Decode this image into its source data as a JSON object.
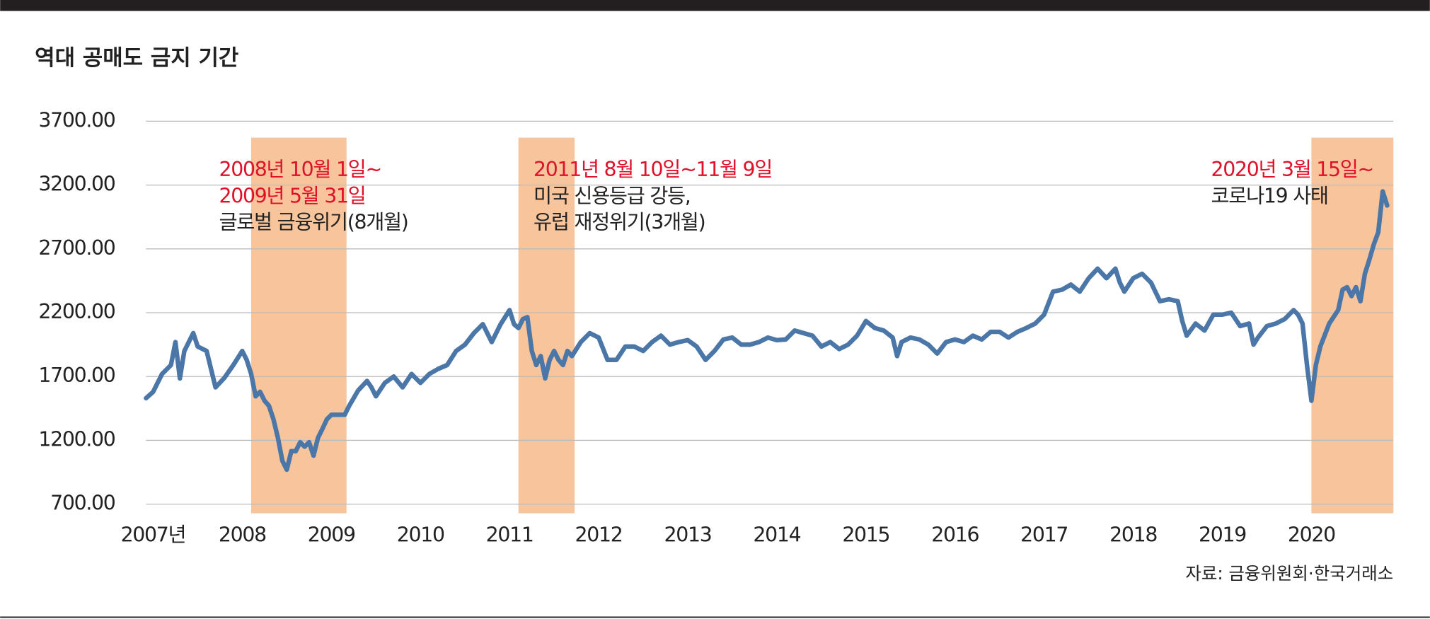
{
  "chart_data": {
    "type": "line",
    "title": "역대 공매도 금지 기간",
    "source": "자료: 금융위원회·한국거래소",
    "xlim": [
      2006.92,
      2020.92
    ],
    "ylim": [
      700,
      3700
    ],
    "grid": true,
    "yticks": [
      {
        "value": 700,
        "label": "700.00"
      },
      {
        "value": 1200,
        "label": "1200.00"
      },
      {
        "value": 1700,
        "label": "1700.00"
      },
      {
        "value": 2200,
        "label": "2200.00"
      },
      {
        "value": 2700,
        "label": "2700.00"
      },
      {
        "value": 3200,
        "label": "3200.00"
      },
      {
        "value": 3700,
        "label": "3700.00"
      }
    ],
    "xticks": [
      {
        "value": 2007,
        "label": "2007년"
      },
      2008,
      2009,
      2010,
      2011,
      2012,
      2013,
      2014,
      2015,
      2016,
      2017,
      2018,
      2019,
      2020
    ],
    "highlights": [
      {
        "start": 2008.1,
        "end": 2009.17,
        "color": "#f7c49b",
        "date": [
          "2008년 10월 1일~",
          "2009년 5월 31일"
        ],
        "note": [
          "글로벌 금융위기(8개월)"
        ]
      },
      {
        "start": 2011.1,
        "end": 2011.73,
        "color": "#f7c49b",
        "date": [
          "2011년 8월 10일~11월 9일"
        ],
        "note": [
          "미국 신용등급 강등,",
          "유럽 재정위기(3개월)"
        ]
      },
      {
        "start": 2020.0,
        "end": 2020.92,
        "color": "#f7c49b",
        "date": [
          "2020년 3월 15일~"
        ],
        "note": [
          "코로나19 사태"
        ]
      }
    ],
    "date_color": "#e0112b",
    "x": [
      2006.92,
      2007.0,
      2007.1,
      2007.2,
      2007.25,
      2007.3,
      2007.35,
      2007.45,
      2007.5,
      2007.6,
      2007.7,
      2007.8,
      2007.9,
      2008.0,
      2008.05,
      2008.1,
      2008.15,
      2008.2,
      2008.25,
      2008.3,
      2008.35,
      2008.4,
      2008.45,
      2008.5,
      2008.55,
      2008.6,
      2008.65,
      2008.7,
      2008.75,
      2008.8,
      2008.85,
      2008.9,
      2008.95,
      2009.0,
      2009.1,
      2009.15,
      2009.2,
      2009.3,
      2009.4,
      2009.45,
      2009.5,
      2009.6,
      2009.7,
      2009.8,
      2009.9,
      2010.0,
      2010.1,
      2010.2,
      2010.3,
      2010.4,
      2010.5,
      2010.6,
      2010.7,
      2010.8,
      2010.9,
      2011.0,
      2011.05,
      2011.1,
      2011.15,
      2011.2,
      2011.25,
      2011.3,
      2011.35,
      2011.4,
      2011.45,
      2011.5,
      2011.55,
      2011.6,
      2011.65,
      2011.7,
      2011.8,
      2011.9,
      2012.0,
      2012.1,
      2012.2,
      2012.3,
      2012.4,
      2012.5,
      2012.6,
      2012.7,
      2012.8,
      2012.9,
      2013.0,
      2013.1,
      2013.2,
      2013.3,
      2013.4,
      2013.5,
      2013.6,
      2013.7,
      2013.8,
      2013.9,
      2014.0,
      2014.1,
      2014.2,
      2014.3,
      2014.4,
      2014.5,
      2014.6,
      2014.7,
      2014.8,
      2014.9,
      2015.0,
      2015.1,
      2015.2,
      2015.3,
      2015.35,
      2015.4,
      2015.5,
      2015.6,
      2015.7,
      2015.8,
      2015.9,
      2016.0,
      2016.1,
      2016.2,
      2016.3,
      2016.4,
      2016.5,
      2016.6,
      2016.7,
      2016.8,
      2016.9,
      2017.0,
      2017.1,
      2017.2,
      2017.3,
      2017.4,
      2017.5,
      2017.6,
      2017.7,
      2017.8,
      2017.85,
      2017.9,
      2018.0,
      2018.1,
      2018.2,
      2018.3,
      2018.4,
      2018.5,
      2018.55,
      2018.6,
      2018.7,
      2018.8,
      2018.9,
      2019.0,
      2019.1,
      2019.2,
      2019.3,
      2019.35,
      2019.4,
      2019.5,
      2019.6,
      2019.7,
      2019.8,
      2019.85,
      2019.9,
      2019.95,
      2020.0,
      2020.05,
      2020.1,
      2020.2,
      2020.3,
      2020.35,
      2020.4,
      2020.45,
      2020.5,
      2020.55,
      2020.6,
      2020.65,
      2020.7,
      2020.75,
      2020.8,
      2020.85
    ],
    "series": [
      {
        "color": "#4a76a8",
        "values": [
          1530,
          1580,
          1720,
          1790,
          1970,
          1685,
          1900,
          2040,
          1935,
          1900,
          1615,
          1690,
          1790,
          1900,
          1830,
          1720,
          1545,
          1580,
          1510,
          1470,
          1365,
          1220,
          1040,
          970,
          1115,
          1115,
          1185,
          1150,
          1185,
          1080,
          1220,
          1290,
          1365,
          1400,
          1400,
          1400,
          1470,
          1590,
          1665,
          1615,
          1545,
          1650,
          1700,
          1615,
          1720,
          1650,
          1720,
          1760,
          1790,
          1900,
          1950,
          2040,
          2110,
          1970,
          2110,
          2220,
          2110,
          2080,
          2150,
          2165,
          1900,
          1790,
          1860,
          1685,
          1830,
          1900,
          1830,
          1790,
          1900,
          1860,
          1970,
          2040,
          2005,
          1830,
          1830,
          1935,
          1935,
          1900,
          1970,
          2020,
          1950,
          1970,
          1985,
          1935,
          1830,
          1900,
          1990,
          2005,
          1950,
          1950,
          1970,
          2005,
          1985,
          1990,
          2060,
          2040,
          2020,
          1935,
          1970,
          1915,
          1950,
          2020,
          2135,
          2080,
          2060,
          2005,
          1860,
          1970,
          2005,
          1990,
          1950,
          1880,
          1970,
          1990,
          1970,
          2020,
          1990,
          2050,
          2050,
          2005,
          2050,
          2080,
          2115,
          2185,
          2365,
          2380,
          2420,
          2365,
          2470,
          2545,
          2470,
          2545,
          2435,
          2365,
          2470,
          2505,
          2435,
          2290,
          2305,
          2290,
          2135,
          2020,
          2115,
          2060,
          2185,
          2185,
          2200,
          2095,
          2115,
          1950,
          2005,
          2095,
          2115,
          2150,
          2220,
          2185,
          2115,
          1790,
          1510,
          1790,
          1935,
          2115,
          2220,
          2380,
          2400,
          2330,
          2400,
          2290,
          2505,
          2615,
          2735,
          2830,
          3150,
          3040
        ]
      }
    ]
  }
}
